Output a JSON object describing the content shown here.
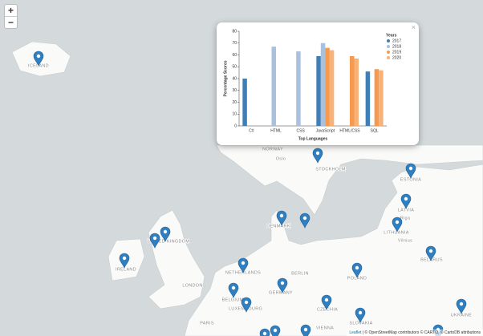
{
  "zoom": {
    "in": "+",
    "out": "−"
  },
  "map_labels": [
    "ICELAND",
    "NORWAY",
    "Oslo",
    "STOCKHOLM",
    "ESTONIA",
    "LATVIA",
    "Riga",
    "LITHUANIA",
    "Vilnius",
    "BELARUS",
    "DENMARK",
    "UNITED KINGDOM",
    "IRELAND",
    "LONDON",
    "NETHERLANDS",
    "BERLIN",
    "POLAND",
    "GERMANY",
    "BELGIUM",
    "LUXEMBOURG",
    "PARIS",
    "CZECHIA",
    "SLOVAKIA",
    "VIENNA",
    "UKRAINE"
  ],
  "attribution": {
    "leaflet": "Leaflet",
    "rest": "| © OpenStreetMap contributors © CARTO, © CartoDB attributions"
  },
  "popup": {
    "close": "×"
  },
  "chart_data": {
    "type": "bar",
    "xlabel": "Top Languages",
    "ylabel": "Percentage Scores",
    "categories": [
      "C#",
      "HTML",
      "CSS",
      "JavaScript",
      "HTML/CSS",
      "SQL"
    ],
    "legend_title": "Years",
    "series": [
      {
        "name": "2017",
        "color": "#3f7fb6",
        "values": [
          40,
          null,
          null,
          59,
          null,
          46
        ]
      },
      {
        "name": "2018",
        "color": "#a9c1dc",
        "values": [
          null,
          67,
          63,
          70,
          null,
          null
        ]
      },
      {
        "name": "2019",
        "color": "#f59a4f",
        "values": [
          null,
          null,
          null,
          66,
          59,
          48
        ]
      },
      {
        "name": "2020",
        "color": "#f7b27a",
        "values": [
          null,
          null,
          null,
          64,
          57,
          47
        ]
      }
    ],
    "ylim": [
      0,
      80
    ],
    "yticks": [
      0,
      10,
      20,
      30,
      40,
      50,
      60,
      70,
      80
    ]
  }
}
